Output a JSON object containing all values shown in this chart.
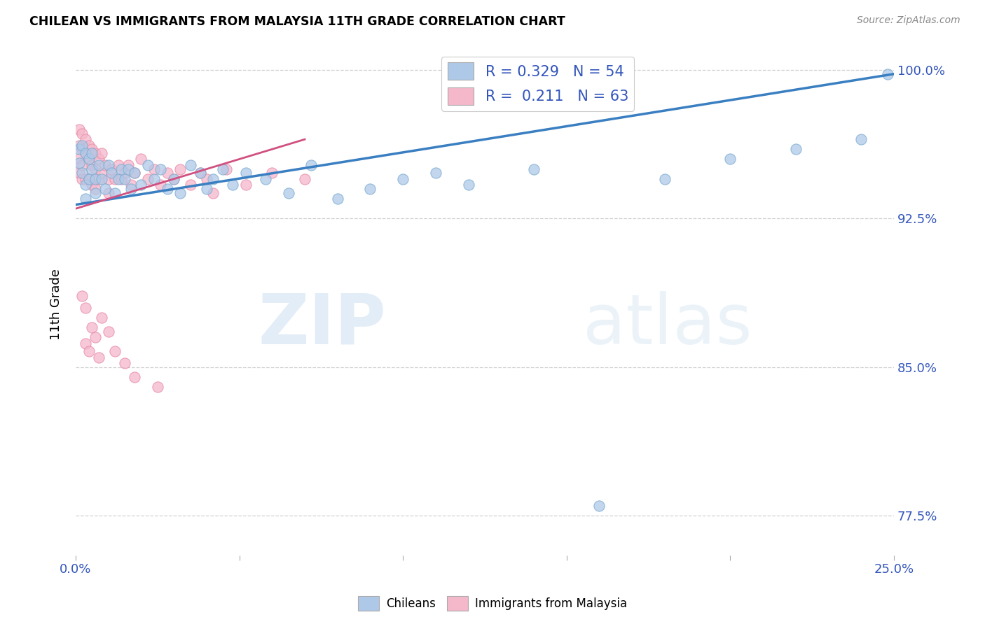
{
  "title": "CHILEAN VS IMMIGRANTS FROM MALAYSIA 11TH GRADE CORRELATION CHART",
  "source": "Source: ZipAtlas.com",
  "ylabel": "11th Grade",
  "xlim": [
    0.0,
    0.25
  ],
  "ylim": [
    0.755,
    1.008
  ],
  "xticks": [
    0.0,
    0.05,
    0.1,
    0.15,
    0.2,
    0.25
  ],
  "xtick_labels": [
    "0.0%",
    "",
    "",
    "",
    "",
    "25.0%"
  ],
  "ytick_vals": [
    0.775,
    0.85,
    0.925,
    1.0
  ],
  "ytick_labels": [
    "77.5%",
    "85.0%",
    "92.5%",
    "100.0%"
  ],
  "blue_R": 0.329,
  "blue_N": 54,
  "pink_R": 0.211,
  "pink_N": 63,
  "blue_color": "#aec9e8",
  "blue_edge": "#7aaad0",
  "pink_color": "#f5b8cb",
  "pink_edge": "#e887a5",
  "trend_blue": "#3a7fc1",
  "trend_pink": "#d05080",
  "watermark_text": "ZIPatlas",
  "legend_label_blue": "Chileans",
  "legend_label_pink": "Immigrants from Malaysia",
  "blue_points_x": [
    0.001,
    0.001,
    0.002,
    0.002,
    0.003,
    0.003,
    0.003,
    0.004,
    0.004,
    0.005,
    0.005,
    0.006,
    0.006,
    0.007,
    0.008,
    0.009,
    0.01,
    0.011,
    0.012,
    0.013,
    0.014,
    0.015,
    0.016,
    0.017,
    0.018,
    0.02,
    0.022,
    0.024,
    0.026,
    0.028,
    0.03,
    0.032,
    0.035,
    0.038,
    0.04,
    0.042,
    0.045,
    0.048,
    0.052,
    0.058,
    0.065,
    0.072,
    0.08,
    0.09,
    0.1,
    0.11,
    0.12,
    0.14,
    0.16,
    0.18,
    0.2,
    0.22,
    0.24,
    0.248
  ],
  "blue_points_y": [
    0.96,
    0.953,
    0.962,
    0.948,
    0.958,
    0.942,
    0.935,
    0.955,
    0.945,
    0.958,
    0.95,
    0.945,
    0.938,
    0.952,
    0.945,
    0.94,
    0.952,
    0.948,
    0.938,
    0.945,
    0.95,
    0.945,
    0.95,
    0.94,
    0.948,
    0.942,
    0.952,
    0.945,
    0.95,
    0.94,
    0.945,
    0.938,
    0.952,
    0.948,
    0.94,
    0.945,
    0.95,
    0.942,
    0.948,
    0.945,
    0.938,
    0.952,
    0.935,
    0.94,
    0.945,
    0.948,
    0.942,
    0.95,
    0.78,
    0.945,
    0.955,
    0.96,
    0.965,
    0.998
  ],
  "pink_points_x": [
    0.001,
    0.001,
    0.001,
    0.001,
    0.002,
    0.002,
    0.002,
    0.002,
    0.003,
    0.003,
    0.003,
    0.004,
    0.004,
    0.004,
    0.005,
    0.005,
    0.005,
    0.006,
    0.006,
    0.006,
    0.007,
    0.007,
    0.008,
    0.008,
    0.009,
    0.01,
    0.01,
    0.011,
    0.012,
    0.013,
    0.014,
    0.015,
    0.016,
    0.017,
    0.018,
    0.02,
    0.022,
    0.024,
    0.026,
    0.028,
    0.03,
    0.032,
    0.035,
    0.038,
    0.04,
    0.042,
    0.046,
    0.052,
    0.06,
    0.07,
    0.002,
    0.003,
    0.003,
    0.004,
    0.005,
    0.006,
    0.007,
    0.008,
    0.01,
    0.012,
    0.015,
    0.018,
    0.025
  ],
  "pink_points_y": [
    0.97,
    0.962,
    0.955,
    0.948,
    0.968,
    0.96,
    0.952,
    0.945,
    0.965,
    0.958,
    0.945,
    0.962,
    0.955,
    0.945,
    0.96,
    0.952,
    0.942,
    0.958,
    0.95,
    0.94,
    0.955,
    0.945,
    0.958,
    0.948,
    0.952,
    0.945,
    0.938,
    0.95,
    0.945,
    0.952,
    0.945,
    0.948,
    0.952,
    0.942,
    0.948,
    0.955,
    0.945,
    0.95,
    0.942,
    0.948,
    0.945,
    0.95,
    0.942,
    0.948,
    0.945,
    0.938,
    0.95,
    0.942,
    0.948,
    0.945,
    0.886,
    0.88,
    0.862,
    0.858,
    0.87,
    0.865,
    0.855,
    0.875,
    0.868,
    0.858,
    0.852,
    0.845,
    0.84
  ]
}
